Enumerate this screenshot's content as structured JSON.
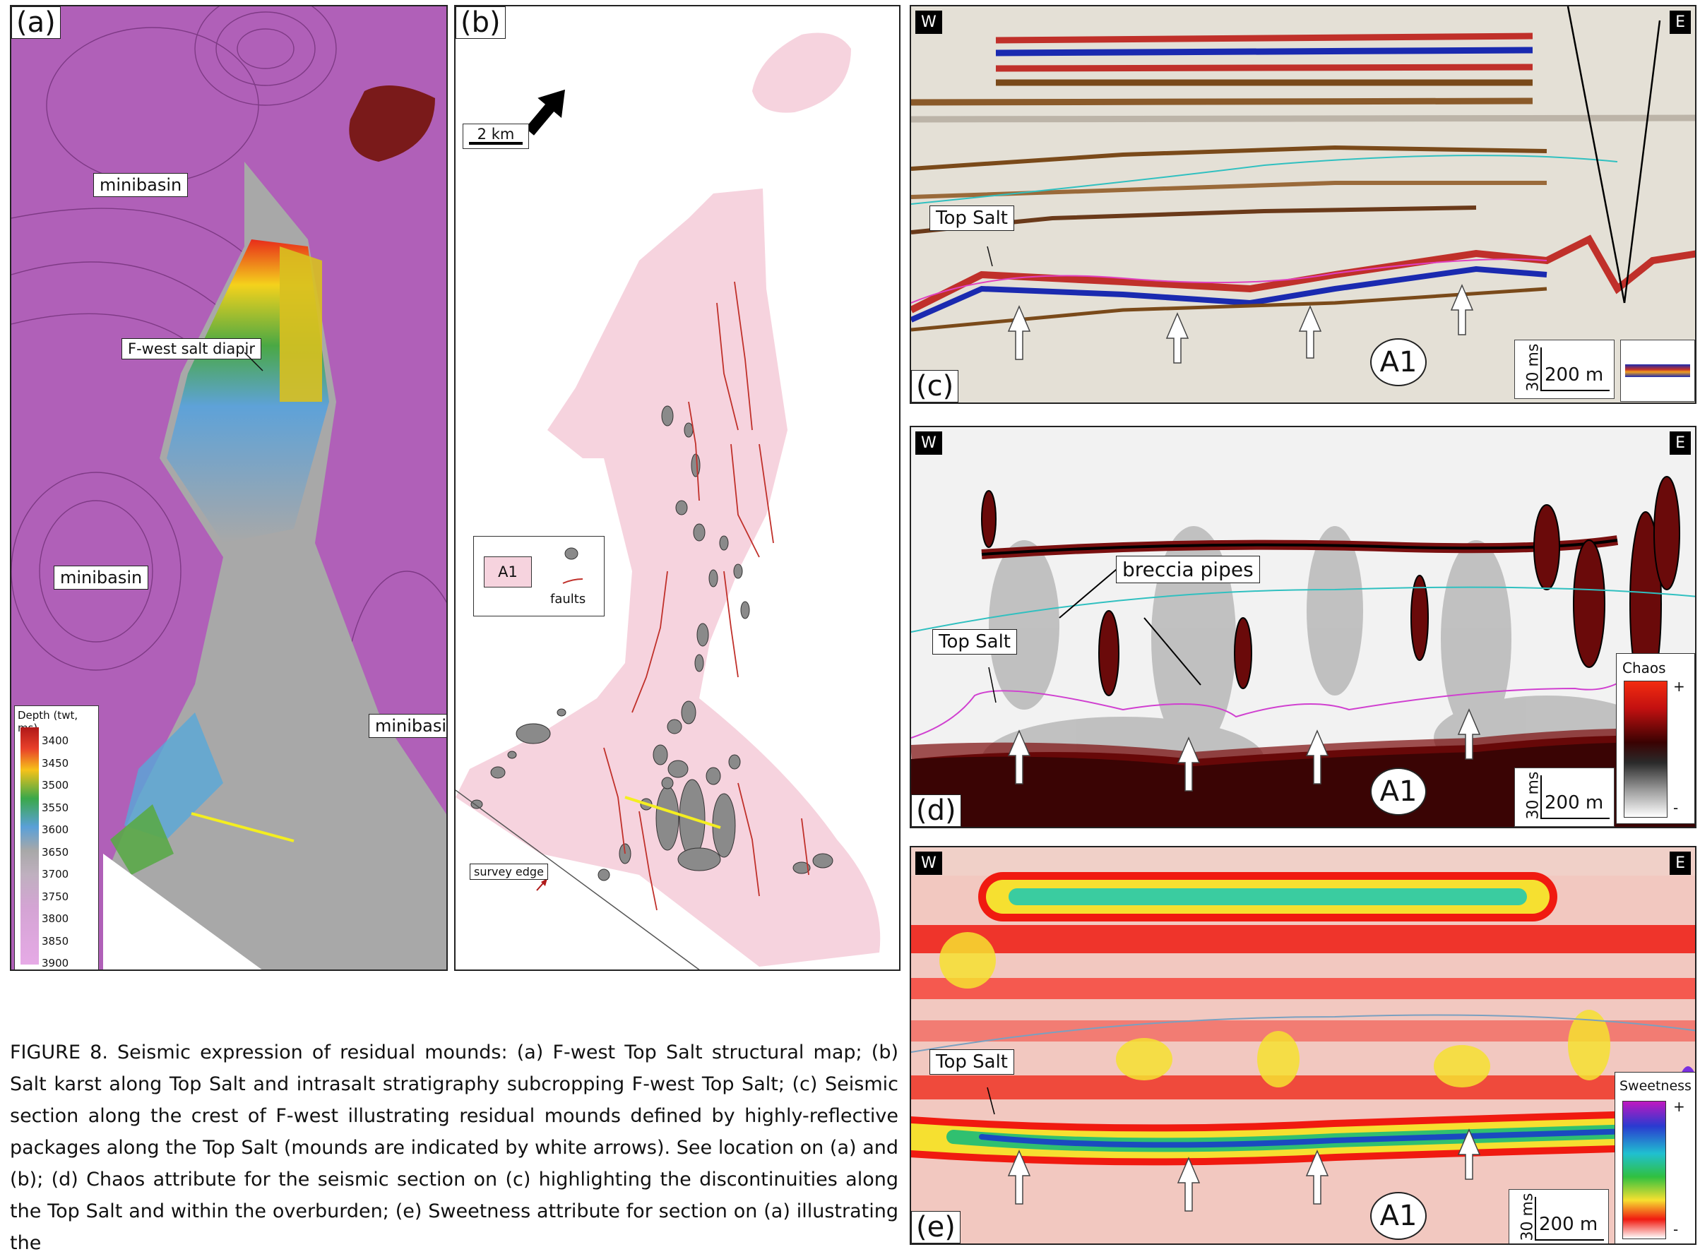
{
  "panel_a": {
    "tag": "(a)",
    "labels": {
      "minibasin_top": "minibasin",
      "minibasin_left": "minibasin",
      "minibasin_right": "minibasin",
      "diapir": "F-west salt diapir"
    },
    "legend": {
      "title": "Depth (twt, ms)",
      "ticks": [
        "3400",
        "3450",
        "3500",
        "3550",
        "3600",
        "3650",
        "3700",
        "3750",
        "3800",
        "3850",
        "3900"
      ],
      "colors": [
        "#b01818",
        "#e8402a",
        "#f6c21a",
        "#3aa84a",
        "#5aa0d8",
        "#a8a8a8",
        "#c6b6c6",
        "#d8a8d8",
        "#e0a0e0",
        "#e8b0e8",
        "#f0c0f0"
      ]
    }
  },
  "panel_b": {
    "tag": "(b)",
    "scale": "2 km",
    "legend": {
      "unit_label": "A1",
      "faults_label": "faults"
    },
    "survey_edge": "survey edge",
    "colors": {
      "unit": "#f6d3de",
      "mound": "#8a8a8a",
      "fault": "#c0302a"
    }
  },
  "panel_c": {
    "tag": "(c)",
    "west": "W",
    "east": "E",
    "top_salt": "Top Salt",
    "unit": "A1",
    "scale_v": "30 ms",
    "scale_h": "200 m"
  },
  "panel_d": {
    "tag": "(d)",
    "west": "W",
    "east": "E",
    "top_salt": "Top Salt",
    "breccia": "breccia pipes",
    "unit": "A1",
    "scale_v": "30 ms",
    "scale_h": "200 m",
    "legend": {
      "title": "Chaos",
      "plus": "+",
      "minus": "-"
    }
  },
  "panel_e": {
    "tag": "(e)",
    "west": "W",
    "east": "E",
    "top_salt": "Top Salt",
    "unit": "A1",
    "scale_v": "30 ms",
    "scale_h": "200 m",
    "legend": {
      "title": "Sweetness",
      "plus": "+",
      "minus": "-"
    }
  },
  "caption": "FIGURE 8. Seismic expression of residual  mounds: (a) F-west Top Salt structural map; (b) Salt karst along Top Salt and intrasalt stratigraphy subcropping F-west Top Salt; (c) Seismic section along the crest of F-west illustrating residual mounds defined by highly-reflective packages along the Top Salt (mounds are indicated by white arrows). See location on (a) and (b); (d) Chaos attribute for the seismic section on (c) highlighting the discontinuities along the Top Salt and within the overburden; (e) Sweetness attribute for section on (a) illustrating the"
}
